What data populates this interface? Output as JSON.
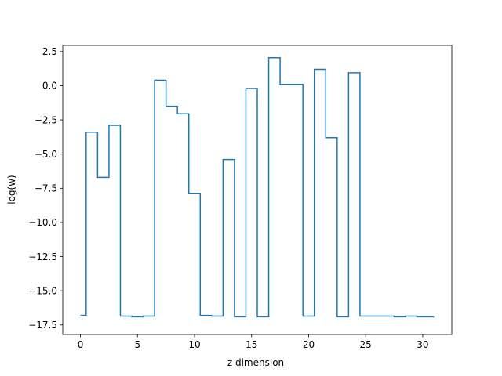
{
  "chart_data": {
    "type": "line",
    "drawstyle": "steps-mid",
    "title": "",
    "xlabel": "z dimension",
    "ylabel": "log(w)",
    "xlim": [
      -1.55,
      32.55
    ],
    "ylim": [
      -18.2,
      2.95
    ],
    "grid": false,
    "line_color": "#1f77b4",
    "xticks": [
      0,
      5,
      10,
      15,
      20,
      25,
      30
    ],
    "xtick_labels": [
      "0",
      "5",
      "10",
      "15",
      "20",
      "25",
      "30"
    ],
    "yticks": [
      2.5,
      0.0,
      -2.5,
      -5.0,
      -7.5,
      -10.0,
      -12.5,
      -15.0,
      -17.5
    ],
    "ytick_labels": [
      "2.5",
      "0.0",
      "−2.5",
      "−5.0",
      "−7.5",
      "−10.0",
      "−12.5",
      "−15.0",
      "−17.5"
    ],
    "series": [
      {
        "x": [
          0,
          1,
          2,
          3,
          4,
          5,
          6,
          7,
          8,
          9,
          10,
          11,
          12,
          13,
          14,
          15,
          16,
          17,
          18,
          19,
          20,
          21,
          22,
          23,
          24,
          25,
          26,
          27,
          28,
          29,
          30,
          31
        ],
        "values": [
          -16.8,
          -3.4,
          -6.7,
          -2.9,
          -16.85,
          -16.9,
          -16.85,
          0.4,
          -1.5,
          -2.05,
          -7.9,
          -16.8,
          -16.85,
          -5.4,
          -16.9,
          -0.2,
          -16.9,
          2.05,
          0.1,
          0.1,
          -16.85,
          1.2,
          -3.8,
          -16.9,
          0.95,
          -16.85,
          -16.85,
          -16.85,
          -16.9,
          -16.85,
          -16.9,
          -16.9
        ]
      }
    ]
  }
}
